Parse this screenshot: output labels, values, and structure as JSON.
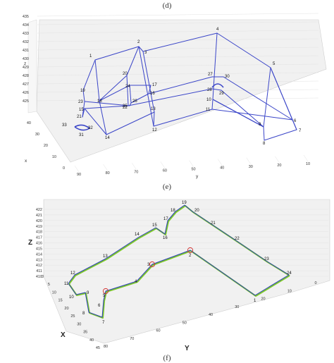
{
  "captions": {
    "top": "(d)",
    "middle": "(e)",
    "bottom": "(f)"
  },
  "colors": {
    "route": "#3a45c8",
    "path_green": "#7ec92a",
    "path_blue": "#2c3fb8",
    "marker": "#d23a3a",
    "grid": "#e2e2e2",
    "pane": "#f1f1f1"
  },
  "chart_data": [
    {
      "type": "line",
      "panel": "(e)",
      "xlabel": "x",
      "ylabel": "y",
      "zlabel": "z",
      "x_ticks": [
        "40",
        "30",
        "20",
        "10",
        "0"
      ],
      "y_ticks": [
        "90",
        "80",
        "70",
        "60",
        "50",
        "40",
        "30",
        "20",
        "10"
      ],
      "z_ticks": [
        "435",
        "434",
        "433",
        "432",
        "431",
        "430",
        "429",
        "428",
        "427",
        "426",
        "425"
      ],
      "points": [
        {
          "label": "1",
          "y": 83,
          "z": 431.2
        },
        {
          "label": "2",
          "y": 66,
          "z": 432.5
        },
        {
          "label": "3",
          "y": 62,
          "z": 431.8
        },
        {
          "label": "4",
          "y": 41,
          "z": 434.2
        },
        {
          "label": "5",
          "y": 17,
          "z": 430.5
        },
        {
          "label": "6",
          "y": 9,
          "z": 423.2
        },
        {
          "label": "7",
          "y": 7,
          "z": 422.6
        },
        {
          "label": "8",
          "y": 19,
          "z": 420.8
        },
        {
          "label": "9",
          "y": 21,
          "z": 422.9
        },
        {
          "label": "10",
          "y": 42,
          "z": 425.6
        },
        {
          "label": "11",
          "y": 43,
          "z": 424.6
        },
        {
          "label": "12",
          "y": 61,
          "z": 422.3
        },
        {
          "label": "13",
          "y": 63,
          "z": 423.5
        },
        {
          "label": "14",
          "y": 73,
          "z": 421.6
        },
        {
          "label": "15",
          "y": 88,
          "z": 424.2
        },
        {
          "label": "16",
          "y": 65,
          "z": 426.1
        },
        {
          "label": "17",
          "y": 66,
          "z": 426.9
        },
        {
          "label": "18",
          "y": 78,
          "z": 425.9
        },
        {
          "label": "19",
          "y": 88,
          "z": 428.0
        },
        {
          "label": "20",
          "y": 70,
          "z": 429.1
        },
        {
          "label": "21",
          "y": 90,
          "z": 423.0
        },
        {
          "label": "22",
          "y": 66,
          "z": 424.6
        },
        {
          "label": "23",
          "y": 88,
          "z": 425.6
        },
        {
          "label": "24",
          "y": 70,
          "z": 427.3
        },
        {
          "label": "25",
          "y": 69,
          "z": 424.9
        },
        {
          "label": "26",
          "y": 68,
          "z": 425.4
        },
        {
          "label": "27",
          "y": 45,
          "z": 429.0
        },
        {
          "label": "28",
          "y": 45,
          "z": 427.4
        },
        {
          "label": "29",
          "y": 42,
          "z": 427.2
        },
        {
          "label": "30",
          "y": 42,
          "z": 428.7
        },
        {
          "label": "31",
          "y": 87,
          "z": 421.7
        },
        {
          "label": "32",
          "y": 85,
          "z": 421.9
        },
        {
          "label": "33",
          "y": 91,
          "z": 422.3
        }
      ]
    },
    {
      "type": "line",
      "panel": "(f)",
      "xlabel": "X",
      "ylabel": "Y",
      "zlabel": "Z",
      "x_ticks": [
        "45",
        "40",
        "35",
        "30",
        "25",
        "20",
        "15",
        "10",
        "5",
        "0"
      ],
      "y_ticks": [
        "80",
        "70",
        "60",
        "50",
        "40",
        "30",
        "20",
        "10",
        "0"
      ],
      "z_ticks": [
        "422",
        "421",
        "420",
        "419",
        "418",
        "417",
        "416",
        "415",
        "414",
        "413",
        "412",
        "411",
        "410"
      ],
      "series": [
        {
          "name": "",
          "color": "#7ec92a"
        },
        {
          "name": "",
          "color": "#2c3fb8"
        }
      ],
      "points": [
        {
          "label": "1"
        },
        {
          "label": "2"
        },
        {
          "label": "3"
        },
        {
          "label": "4"
        },
        {
          "label": "5"
        },
        {
          "label": "6"
        },
        {
          "label": "7"
        },
        {
          "label": "8"
        },
        {
          "label": "9"
        },
        {
          "label": "10"
        },
        {
          "label": "11"
        },
        {
          "label": "12"
        },
        {
          "label": "13"
        },
        {
          "label": "14"
        },
        {
          "label": "15"
        },
        {
          "label": "16"
        },
        {
          "label": "17"
        },
        {
          "label": "18"
        },
        {
          "label": "19"
        },
        {
          "label": "20"
        },
        {
          "label": "21"
        },
        {
          "label": "22"
        },
        {
          "label": "23"
        },
        {
          "label": "24"
        }
      ],
      "markers": [
        "2",
        "3",
        "5"
      ]
    }
  ]
}
